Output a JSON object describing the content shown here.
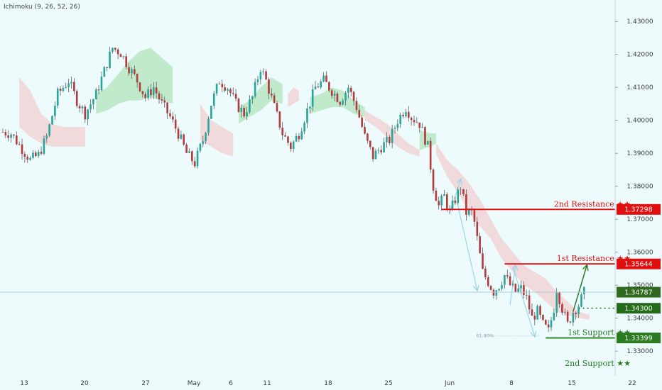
{
  "indicator_label": "Ichimoku (9, 26, 52, 26)",
  "colors": {
    "background": "#eefbfd",
    "candle_up": "#26a69a",
    "candle_down": "#b23a3a",
    "cloud_bull": "#b9e6c4",
    "cloud_bear": "#f1d3d6",
    "resistance": "#e01010",
    "support": "#2a7a20",
    "arrow": "#9fd3e6",
    "current_line": "#a9cdd6"
  },
  "chart_data": {
    "type": "candlestick",
    "title": "",
    "xlabel": "",
    "ylabel": "",
    "ylim": [
      1.3225,
      1.4365
    ],
    "y_ticks": [
      "1.43000",
      "1.42000",
      "1.41000",
      "1.40000",
      "1.39000",
      "1.38000",
      "1.37000",
      "1.36000",
      "1.35000",
      "1.34000",
      "1.33000"
    ],
    "x_ticks": [
      "13",
      "20",
      "27",
      "May",
      "6",
      "11",
      "18",
      "25",
      "Jun",
      "8",
      "15",
      "22"
    ],
    "price_path": [
      [
        0,
        1.3965
      ],
      [
        3,
        1.396
      ],
      [
        6,
        1.3925
      ],
      [
        10,
        1.388
      ],
      [
        13,
        1.3895
      ],
      [
        16,
        1.395
      ],
      [
        20,
        1.408
      ],
      [
        24,
        1.412
      ],
      [
        27,
        1.406
      ],
      [
        30,
        1.402
      ],
      [
        34,
        1.408
      ],
      [
        37,
        1.415
      ],
      [
        40,
        1.422
      ],
      [
        43,
        1.4205
      ],
      [
        46,
        1.416
      ],
      [
        49,
        1.412
      ],
      [
        52,
        1.407
      ],
      [
        55,
        1.41
      ],
      [
        58,
        1.405
      ],
      [
        61,
        1.401
      ],
      [
        64,
        1.396
      ],
      [
        67,
        1.39
      ],
      [
        70,
        1.387
      ],
      [
        73,
        1.394
      ],
      [
        76,
        1.405
      ],
      [
        79,
        1.412
      ],
      [
        82,
        1.41
      ],
      [
        85,
        1.405
      ],
      [
        88,
        1.402
      ],
      [
        91,
        1.407
      ],
      [
        94,
        1.416
      ],
      [
        96,
        1.412
      ],
      [
        99,
        1.404
      ],
      [
        102,
        1.396
      ],
      [
        105,
        1.392
      ],
      [
        108,
        1.396
      ],
      [
        111,
        1.403
      ],
      [
        114,
        1.41
      ],
      [
        117,
        1.412
      ],
      [
        120,
        1.409
      ],
      [
        123,
        1.406
      ],
      [
        126,
        1.41
      ],
      [
        129,
        1.404
      ],
      [
        132,
        1.395
      ],
      [
        135,
        1.389
      ],
      [
        138,
        1.392
      ],
      [
        141,
        1.394
      ],
      [
        144,
        1.4
      ],
      [
        147,
        1.404
      ],
      [
        149,
        1.401
      ],
      [
        152,
        1.399
      ],
      [
        155,
        1.392
      ],
      [
        157,
        1.38
      ],
      [
        159,
        1.374
      ],
      [
        161,
        1.377
      ],
      [
        163,
        1.372
      ],
      [
        165,
        1.376
      ],
      [
        167,
        1.38
      ],
      [
        169,
        1.372
      ],
      [
        171,
        1.372
      ],
      [
        172,
        1.369
      ],
      [
        173,
        1.364
      ],
      [
        175,
        1.354
      ],
      [
        177,
        1.351
      ],
      [
        179,
        1.348
      ],
      [
        181,
        1.35
      ],
      [
        183,
        1.353
      ],
      [
        185,
        1.35
      ],
      [
        187,
        1.348
      ],
      [
        189,
        1.349
      ],
      [
        191,
        1.346
      ],
      [
        193,
        1.34
      ],
      [
        195,
        1.342
      ],
      [
        197,
        1.338
      ],
      [
        199,
        1.336
      ],
      [
        201,
        1.343
      ],
      [
        202,
        1.349
      ],
      [
        204,
        1.343
      ],
      [
        206,
        1.338
      ],
      [
        208,
        1.342
      ],
      [
        210,
        1.344
      ],
      [
        212,
        1.3478
      ]
    ],
    "cloud_segments": [
      {
        "kind": "bear",
        "x": [
          6,
          10,
          14,
          18,
          22,
          26,
          30
        ],
        "top": [
          1.413,
          1.409,
          1.402,
          1.399,
          1.398,
          1.398,
          1.398
        ],
        "bottom": [
          1.398,
          1.395,
          1.393,
          1.392,
          1.392,
          1.392,
          1.392
        ]
      },
      {
        "kind": "bull",
        "x": [
          34,
          38,
          42,
          46,
          50,
          54,
          58,
          62
        ],
        "top": [
          1.408,
          1.41,
          1.414,
          1.418,
          1.421,
          1.422,
          1.419,
          1.416
        ],
        "bottom": [
          1.402,
          1.403,
          1.405,
          1.406,
          1.406,
          1.407,
          1.406,
          1.405
        ]
      },
      {
        "kind": "bear",
        "x": [
          72,
          76,
          80,
          84
        ],
        "top": [
          1.405,
          1.4,
          1.398,
          1.396
        ],
        "bottom": [
          1.394,
          1.392,
          1.39,
          1.389
        ]
      },
      {
        "kind": "bull",
        "x": [
          86,
          90,
          94,
          98,
          102
        ],
        "top": [
          1.404,
          1.406,
          1.41,
          1.413,
          1.411
        ],
        "bottom": [
          1.399,
          1.401,
          1.403,
          1.406,
          1.405
        ]
      },
      {
        "kind": "bear",
        "x": [
          104,
          106,
          108
        ],
        "top": [
          1.408,
          1.41,
          1.409
        ],
        "bottom": [
          1.404,
          1.405,
          1.406
        ]
      },
      {
        "kind": "bull",
        "x": [
          112,
          116,
          120,
          124,
          128,
          132
        ],
        "top": [
          1.407,
          1.408,
          1.41,
          1.409,
          1.406,
          1.404
        ],
        "bottom": [
          1.402,
          1.403,
          1.404,
          1.404,
          1.402,
          1.401
        ]
      },
      {
        "kind": "bear",
        "x": [
          132,
          136,
          140,
          144,
          148,
          152
        ],
        "top": [
          1.403,
          1.401,
          1.399,
          1.396,
          1.393,
          1.391
        ],
        "bottom": [
          1.4,
          1.398,
          1.395,
          1.392,
          1.39,
          1.389
        ]
      },
      {
        "kind": "bull",
        "x": [
          152,
          156,
          158
        ],
        "top": [
          1.397,
          1.396,
          1.396
        ],
        "bottom": [
          1.391,
          1.392,
          1.393
        ]
      },
      {
        "kind": "bear",
        "x": [
          158,
          162,
          166,
          170,
          174,
          178,
          182,
          186,
          190,
          194,
          198,
          202,
          206,
          210,
          214
        ],
        "top": [
          1.393,
          1.388,
          1.385,
          1.381,
          1.376,
          1.37,
          1.364,
          1.36,
          1.356,
          1.354,
          1.352,
          1.348,
          1.345,
          1.342,
          1.341
        ],
        "bottom": [
          1.39,
          1.383,
          1.378,
          1.372,
          1.368,
          1.364,
          1.358,
          1.354,
          1.35,
          1.348,
          1.345,
          1.342,
          1.341,
          1.34,
          1.3395
        ]
      }
    ],
    "levels": [
      {
        "label": "2nd Resistance ★★",
        "value": 1.37298,
        "tag": "1.37298",
        "kind": "resistance",
        "line_start": 160
      },
      {
        "label": "1st Resistance ★★",
        "value": 1.35644,
        "tag": "1.35644",
        "kind": "resistance",
        "line_start": 183
      },
      {
        "label": "1st Support ★★",
        "value": 1.33399,
        "tag": "1.33399",
        "kind": "support",
        "line_start": 198
      },
      {
        "label": "2nd Support ★★",
        "value": 1.3247,
        "tag": "",
        "kind": "support",
        "line_start": 0
      }
    ],
    "pivot": {
      "value": 1.343,
      "tag": "1.34300",
      "line_start": 210
    },
    "current_price": {
      "value": 1.34787,
      "tag": "1.34787"
    },
    "fib_label": "61.80%",
    "fib_value": 1.3346,
    "arrows": [
      {
        "kind": "impulse",
        "x0": 163,
        "y0": 1.372,
        "x1": 167,
        "y1": 1.382
      },
      {
        "kind": "impulse",
        "x0": 166,
        "y0": 1.374,
        "x1": 173,
        "y1": 1.3485
      },
      {
        "kind": "impulse",
        "x0": 185,
        "y0": 1.344,
        "x1": 187,
        "y1": 1.356
      },
      {
        "kind": "impulse",
        "x0": 186,
        "y0": 1.3555,
        "x1": 194,
        "y1": 1.3345
      },
      {
        "kind": "projection",
        "x0": 208,
        "y0": 1.342,
        "x1": 213,
        "y1": 1.356
      }
    ]
  }
}
